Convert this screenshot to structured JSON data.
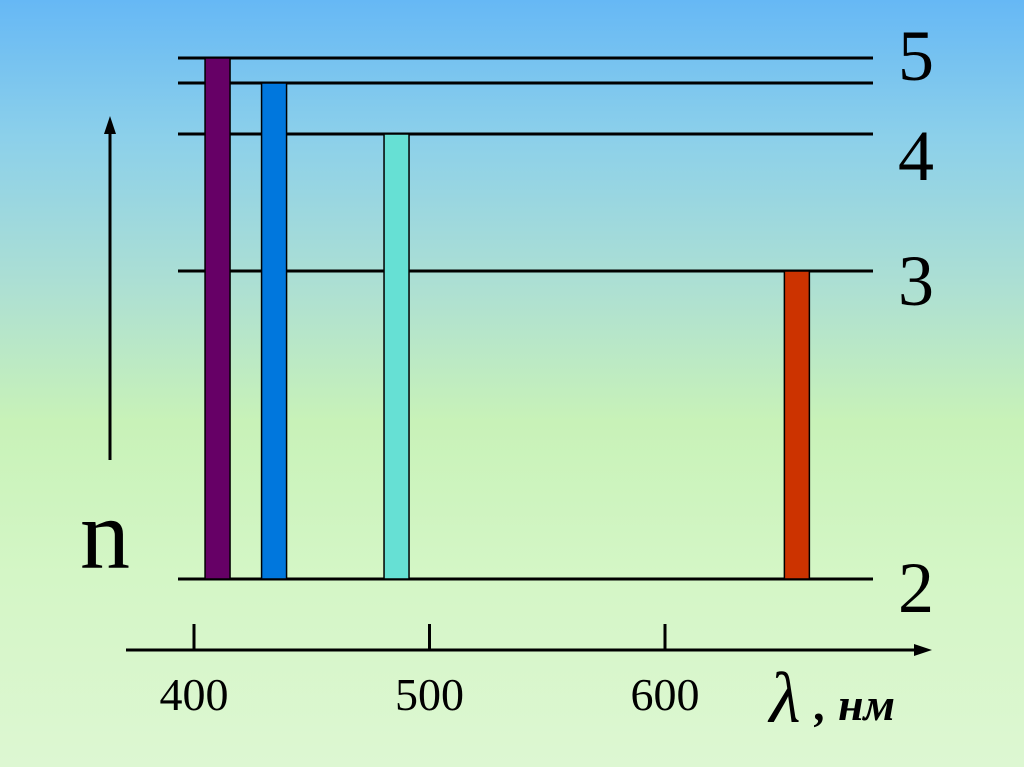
{
  "chart_data": {
    "type": "bar",
    "xlabel_symbol": "λ",
    "xlabel_unit": ", нм",
    "ylabel": "n",
    "x_ticks": [
      "400",
      "500",
      "600"
    ],
    "x_tick_values": [
      400,
      500,
      600
    ],
    "xlim": [
      375,
      730
    ],
    "level_labels": [
      "5",
      "4",
      "3",
      "2"
    ],
    "levels": [
      {
        "n": 6,
        "label": ""
      },
      {
        "n": 5,
        "label": "5"
      },
      {
        "n": 4,
        "label": "4"
      },
      {
        "n": 3,
        "label": "3"
      },
      {
        "n": 2,
        "label": "2"
      }
    ],
    "bars": [
      {
        "wavelength": 410,
        "n_upper": 6,
        "n_lower": 2,
        "color": "#660066"
      },
      {
        "wavelength": 434,
        "n_upper": 5,
        "n_lower": 2,
        "color": "#0077dd"
      },
      {
        "wavelength": 486,
        "n_upper": 4,
        "n_lower": 2,
        "color": "#66e0d4"
      },
      {
        "wavelength": 656,
        "n_upper": 3,
        "n_lower": 2,
        "color": "#cc3300"
      }
    ],
    "line_color": "#000000"
  }
}
